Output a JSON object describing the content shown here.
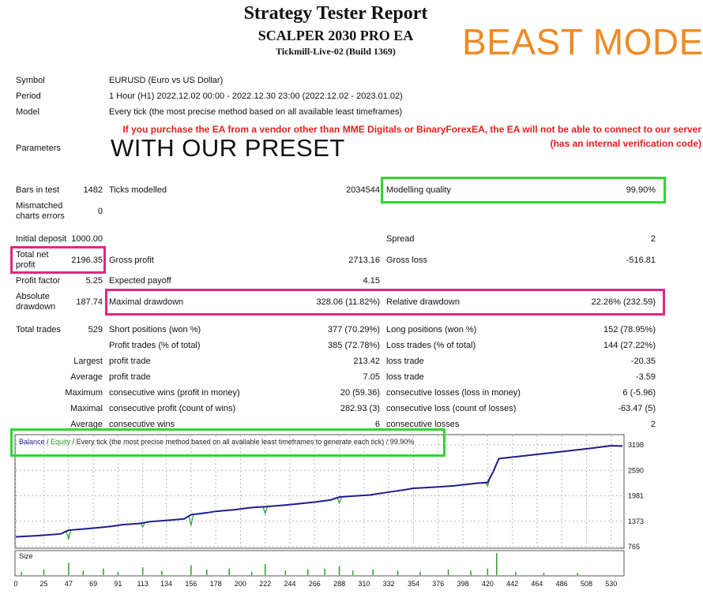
{
  "header": {
    "title": "Strategy Tester Report",
    "ea_name": "SCALPER 2030 PRO EA",
    "server": "Tickmill-Live-02 (Build 1369)",
    "overlay": "BEAST MODE"
  },
  "info": {
    "symbol_label": "Symbol",
    "symbol_value": "EURUSD (Euro vs US Dollar)",
    "period_label": "Period",
    "period_value": "1 Hour (H1) 2022.12.02 00:00 - 2022.12.30 23:00 (2022.12.02 - 2023.01.02)",
    "model_label": "Model",
    "model_value": "Every tick (the most precise method based on all available least timeframes)",
    "warning_line1": "If you purchase the EA from a vendor other than MME Digitals or BinaryForexEA, the EA will not be able to connect to our server",
    "warning_line2": "(has an internal verification code)",
    "parameters_label": "Parameters",
    "preset_text": "WITH OUR PRESET"
  },
  "stats": {
    "bars_label": "Bars in test",
    "bars_value": "1482",
    "ticks_label": "Ticks modelled",
    "ticks_value": "2034544",
    "mq_label": "Modelling quality",
    "mq_value": "99.90%",
    "mismatch_label_1": "Mismatched",
    "mismatch_label_2": "charts errors",
    "mismatch_value": "0",
    "deposit_label": "Initial deposit",
    "deposit_value": "1000.00",
    "spread_label": "Spread",
    "spread_value": "2",
    "tnp_label_1": "Total net",
    "tnp_label_2": "profit",
    "tnp_value": "2196.35",
    "gp_label": "Gross profit",
    "gp_value": "2713.16",
    "gl_label": "Gross loss",
    "gl_value": "-516.81",
    "pf_label": "Profit factor",
    "pf_value": "5.25",
    "ep_label": "Expected payoff",
    "ep_value": "4.15",
    "ad_label_1": "Absolute",
    "ad_label_2": "drawdown",
    "ad_value": "187.74",
    "md_label": "Maximal drawdown",
    "md_value": "328.06 (11.82%)",
    "rd_label": "Relative drawdown",
    "rd_value": "22.26% (232.59)",
    "tt_label": "Total trades",
    "tt_value": "529",
    "sp_label": "Short positions (won %)",
    "sp_value": "377 (70.29%)",
    "lp_label": "Long positions (won %)",
    "lp_value": "152 (78.95%)",
    "pt_label": "Profit trades (% of total)",
    "pt_value": "385 (72.78%)",
    "lt_label": "Loss trades (% of total)",
    "lt_value": "144 (27.22%)",
    "largest_label": "Largest",
    "lpt_label": "profit trade",
    "lpt_value": "213.42",
    "llt_label": "loss trade",
    "llt_value": "-20.35",
    "average_label": "Average",
    "apt_label": "profit trade",
    "apt_value": "7.05",
    "alt_label": "loss trade",
    "alt_value": "-3.59",
    "maximum_label": "Maximum",
    "mcw_label": "consecutive wins (profit in money)",
    "mcw_value": "20 (59.36)",
    "mcl_label": "consecutive losses (loss in money)",
    "mcl_value": "6 (-5.96)",
    "maximal_label": "Maximal",
    "mcp_label": "consecutive profit (count of wins)",
    "mcp_value": "282.93 (3)",
    "mcloss_label": "consecutive loss (count of losses)",
    "mcloss_value": "-63.47 (5)",
    "average2_label": "Average",
    "acw_label": "consecutive wins",
    "acw_value": "6",
    "acl_label": "consecutive losses",
    "acl_value": "2"
  },
  "chart_data": {
    "type": "line",
    "legend_balance": "Balance",
    "legend_sep1": " / ",
    "legend_equity": "Equity",
    "legend_rest": " / Every tick (the most precise method based on all available least timeframes to generate each tick) / 99.90%",
    "y_ticks": [
      "3198",
      "2590",
      "1981",
      "1373",
      "765"
    ],
    "x_ticks": [
      "0",
      "25",
      "47",
      "69",
      "91",
      "113",
      "134",
      "156",
      "178",
      "200",
      "222",
      "244",
      "266",
      "288",
      "310",
      "332",
      "354",
      "376",
      "398",
      "420",
      "442",
      "464",
      "486",
      "508",
      "530"
    ],
    "size_label": "Size",
    "ylim": [
      765,
      3198
    ],
    "xlim": [
      0,
      540
    ],
    "colors": {
      "balance": "#1b1f8c",
      "equity": "#2e9e2e",
      "grid": "#b8b8b8"
    },
    "balance_x": [
      0,
      20,
      40,
      47,
      55,
      70,
      85,
      95,
      110,
      120,
      135,
      150,
      156,
      170,
      178,
      195,
      210,
      222,
      240,
      255,
      266,
      280,
      288,
      300,
      315,
      332,
      345,
      354,
      370,
      390,
      410,
      420,
      425,
      430,
      450,
      470,
      490,
      510,
      530,
      540
    ],
    "balance_y": [
      1000,
      1030,
      1070,
      1160,
      1175,
      1210,
      1250,
      1290,
      1320,
      1365,
      1395,
      1430,
      1530,
      1575,
      1610,
      1650,
      1700,
      1720,
      1760,
      1800,
      1830,
      1880,
      1950,
      1975,
      2000,
      2070,
      2120,
      2160,
      2185,
      2220,
      2280,
      2300,
      2560,
      2870,
      2930,
      2990,
      3050,
      3110,
      3180,
      3170
    ],
    "equity_dips": [
      {
        "x": 47,
        "y": 950
      },
      {
        "x": 113,
        "y": 1240
      },
      {
        "x": 156,
        "y": 1270
      },
      {
        "x": 222,
        "y": 1560
      },
      {
        "x": 288,
        "y": 1810
      },
      {
        "x": 420,
        "y": 2220
      }
    ],
    "size_bars": [
      {
        "x": 5,
        "v": 0.15
      },
      {
        "x": 25,
        "v": 0.25
      },
      {
        "x": 47,
        "v": 0.55
      },
      {
        "x": 60,
        "v": 0.2
      },
      {
        "x": 78,
        "v": 0.3
      },
      {
        "x": 91,
        "v": 0.15
      },
      {
        "x": 113,
        "v": 0.35
      },
      {
        "x": 130,
        "v": 0.2
      },
      {
        "x": 156,
        "v": 0.45
      },
      {
        "x": 170,
        "v": 0.25
      },
      {
        "x": 190,
        "v": 0.3
      },
      {
        "x": 210,
        "v": 0.15
      },
      {
        "x": 222,
        "v": 0.5
      },
      {
        "x": 240,
        "v": 0.2
      },
      {
        "x": 260,
        "v": 0.25
      },
      {
        "x": 275,
        "v": 0.3
      },
      {
        "x": 288,
        "v": 0.4
      },
      {
        "x": 300,
        "v": 0.2
      },
      {
        "x": 318,
        "v": 0.25
      },
      {
        "x": 340,
        "v": 0.2
      },
      {
        "x": 360,
        "v": 0.15
      },
      {
        "x": 385,
        "v": 0.25
      },
      {
        "x": 405,
        "v": 0.2
      },
      {
        "x": 420,
        "v": 0.3
      },
      {
        "x": 428,
        "v": 1.0
      },
      {
        "x": 445,
        "v": 0.15
      },
      {
        "x": 470,
        "v": 0.1
      },
      {
        "x": 500,
        "v": 0.1
      }
    ]
  }
}
